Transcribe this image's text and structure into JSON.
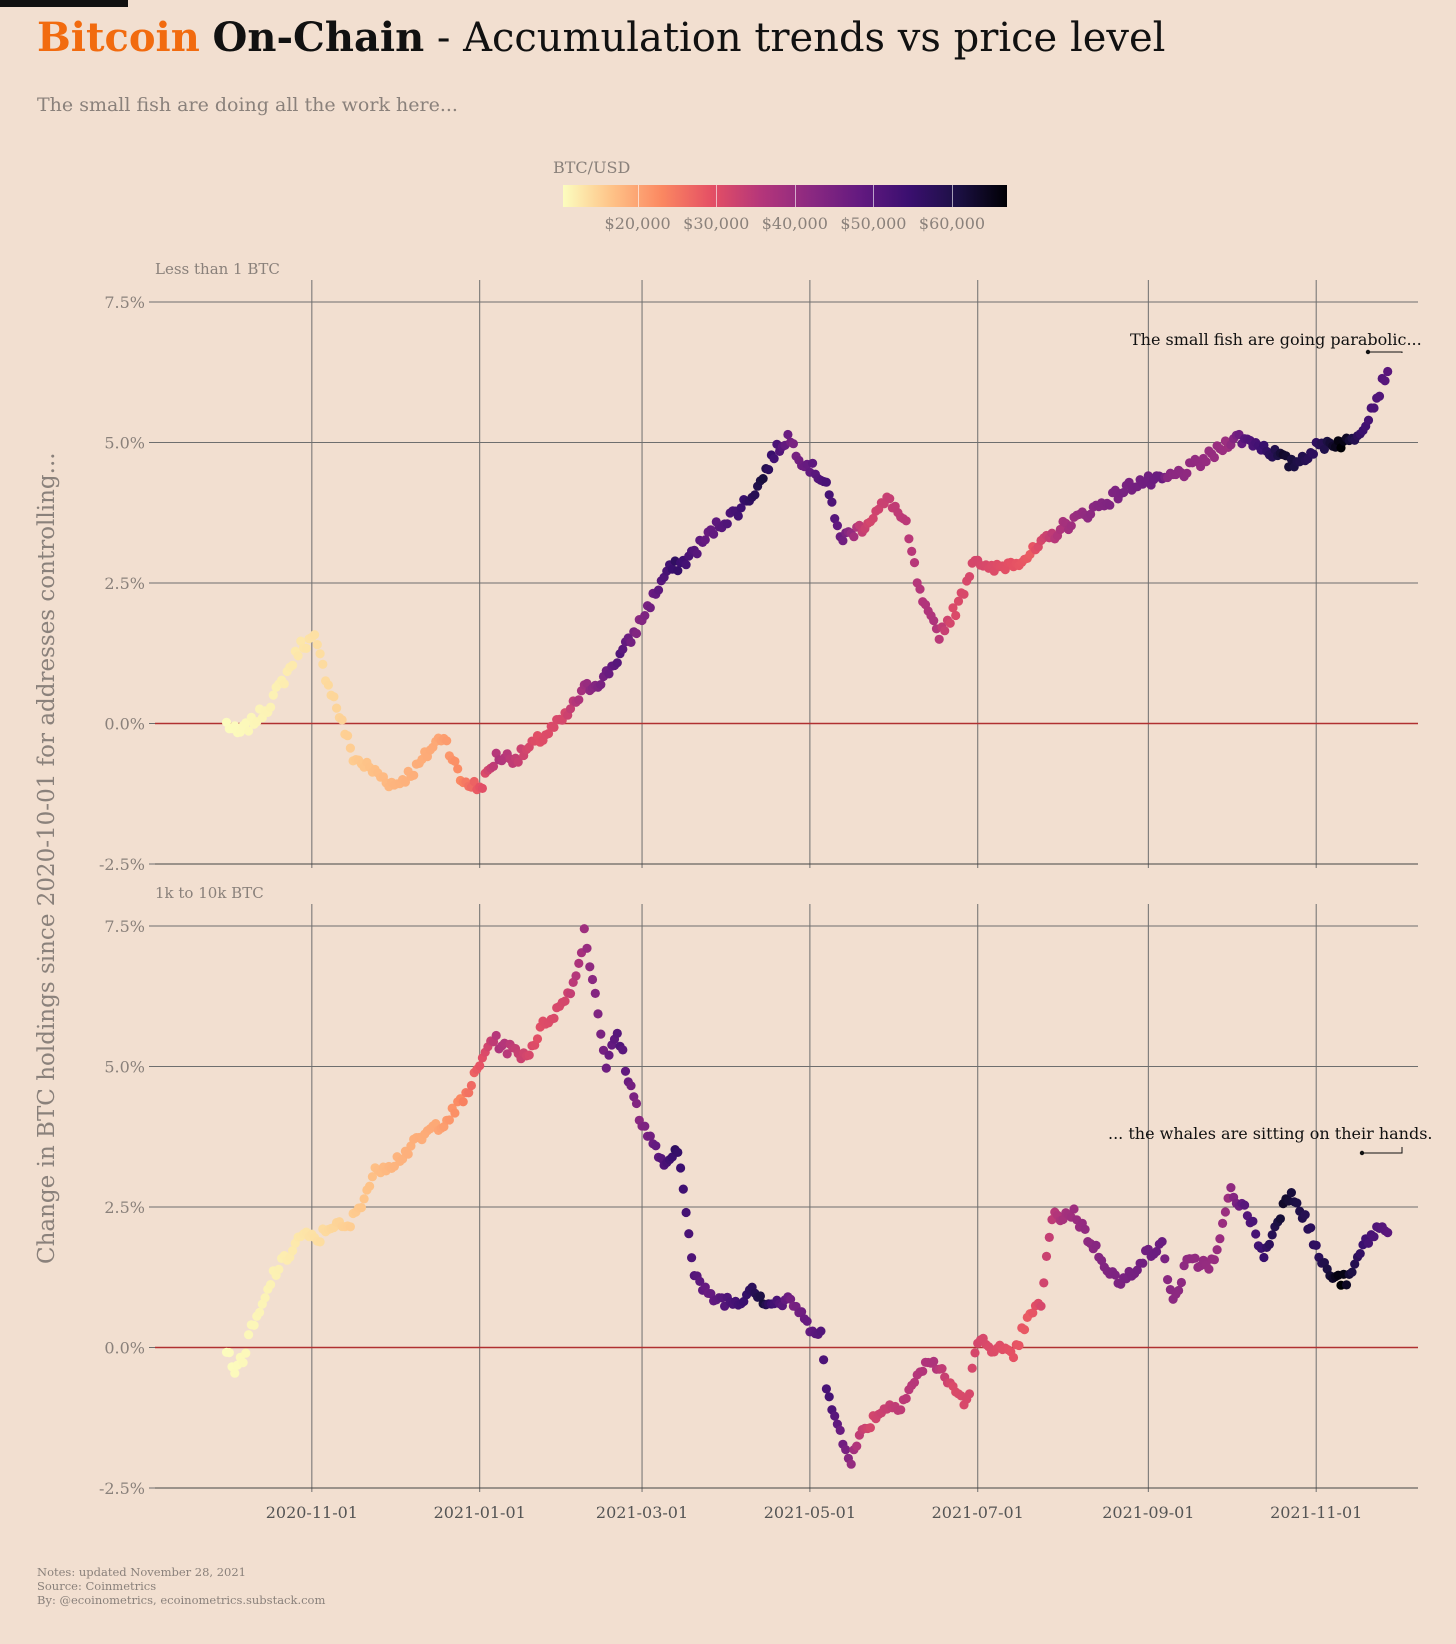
{
  "title": {
    "part1": "Bitcoin",
    "part2": "On-Chain",
    "part3": " - Accumulation trends vs price level"
  },
  "subtitle": "The small fish are doing all the work here...",
  "colors": {
    "background": "#f2dfd0",
    "title_accent": "#f26b0f",
    "zero_line": "#b03030",
    "grid": "#6e6e6e",
    "colormap": "magma (reversed): low price light yellow, high price near black"
  },
  "legend": {
    "title": "BTC/USD",
    "labels": [
      "$20,000",
      "$30,000",
      "$40,000",
      "$50,000",
      "$60,000"
    ],
    "values": [
      20000,
      30000,
      40000,
      50000,
      60000
    ],
    "range": [
      10500,
      67000
    ]
  },
  "ylabel": "Change in BTC holdings since 2020-10-01 for addresses controlling...",
  "notes": [
    "Notes: updated November 28, 2021",
    "Source: Coinmetrics",
    "By: @ecoinometrics, ecoinometrics.substack.com"
  ],
  "chart_data": [
    {
      "type": "scatter",
      "panel_title": "Less than 1 BTC",
      "x_ticks": [
        "2020-11-01",
        "2021-01-01",
        "2021-03-01",
        "2021-05-01",
        "2021-07-01",
        "2021-09-01",
        "2021-11-01"
      ],
      "y_ticks": [
        "-2.5%",
        "0.0%",
        "2.5%",
        "5.0%",
        "7.5%"
      ],
      "ylim": [
        -2.5,
        7.5
      ],
      "x_range": [
        "2020-09-05",
        "2021-12-08"
      ],
      "grid": true,
      "color_by": "BTC/USD price",
      "annotation": "The small fish are going parabolic...",
      "series_keyframes": [
        [
          "2020-10-01",
          0.0
        ],
        [
          "2020-10-05",
          -0.2
        ],
        [
          "2020-10-10",
          0.0
        ],
        [
          "2020-10-16",
          0.3
        ],
        [
          "2020-10-22",
          0.8
        ],
        [
          "2020-10-28",
          1.4
        ],
        [
          "2020-11-02",
          1.5
        ],
        [
          "2020-11-05",
          1.0
        ],
        [
          "2020-11-10",
          0.3
        ],
        [
          "2020-11-16",
          -0.6
        ],
        [
          "2020-11-25",
          -0.9
        ],
        [
          "2020-12-01",
          -1.1
        ],
        [
          "2020-12-09",
          -0.8
        ],
        [
          "2020-12-15",
          -0.4
        ],
        [
          "2020-12-19",
          -0.2
        ],
        [
          "2020-12-25",
          -1.0
        ],
        [
          "2021-01-01",
          -1.15
        ],
        [
          "2021-01-07",
          -0.6
        ],
        [
          "2021-01-15",
          -0.6
        ],
        [
          "2021-01-25",
          -0.2
        ],
        [
          "2021-02-01",
          0.1
        ],
        [
          "2021-02-08",
          0.6
        ],
        [
          "2021-02-15",
          0.8
        ],
        [
          "2021-02-25",
          1.5
        ],
        [
          "2021-03-10",
          2.7
        ],
        [
          "2021-03-17",
          2.9
        ],
        [
          "2021-03-28",
          3.5
        ],
        [
          "2021-04-05",
          3.8
        ],
        [
          "2021-04-12",
          4.2
        ],
        [
          "2021-04-18",
          4.8
        ],
        [
          "2021-04-23",
          5.1
        ],
        [
          "2021-04-28",
          4.7
        ],
        [
          "2021-05-07",
          4.3
        ],
        [
          "2021-05-10",
          3.6
        ],
        [
          "2021-05-13",
          3.3
        ],
        [
          "2021-05-20",
          3.5
        ],
        [
          "2021-05-26",
          3.8
        ],
        [
          "2021-05-30",
          4.0
        ],
        [
          "2021-06-05",
          3.5
        ],
        [
          "2021-06-10",
          2.3
        ],
        [
          "2021-06-13",
          1.9
        ],
        [
          "2021-06-17",
          1.6
        ],
        [
          "2021-06-24",
          2.1
        ],
        [
          "2021-06-30",
          3.0
        ],
        [
          "2021-07-05",
          2.7
        ],
        [
          "2021-07-20",
          3.0
        ],
        [
          "2021-08-01",
          3.5
        ],
        [
          "2021-08-15",
          3.9
        ],
        [
          "2021-08-28",
          4.3
        ],
        [
          "2021-09-05",
          4.3
        ],
        [
          "2021-09-15",
          4.5
        ],
        [
          "2021-09-25",
          4.8
        ],
        [
          "2021-10-02",
          5.1
        ],
        [
          "2021-10-10",
          5.0
        ],
        [
          "2021-10-17",
          4.8
        ],
        [
          "2021-10-23",
          4.6
        ],
        [
          "2021-11-01",
          4.9
        ],
        [
          "2021-11-05",
          5.0
        ],
        [
          "2021-11-13",
          5.0
        ],
        [
          "2021-11-18",
          5.3
        ],
        [
          "2021-11-23",
          5.8
        ],
        [
          "2021-11-27",
          6.3
        ]
      ]
    },
    {
      "type": "scatter",
      "panel_title": "1k to 10k BTC",
      "x_ticks": [
        "2020-11-01",
        "2021-01-01",
        "2021-03-01",
        "2021-05-01",
        "2021-07-01",
        "2021-09-01",
        "2021-11-01"
      ],
      "y_ticks": [
        "-2.5%",
        "0.0%",
        "2.5%",
        "5.0%",
        "7.5%"
      ],
      "ylim": [
        -2.5,
        7.5
      ],
      "x_range": [
        "2020-09-05",
        "2021-12-08"
      ],
      "grid": true,
      "color_by": "BTC/USD price",
      "annotation": "... the whales are sitting on their hands.",
      "series_keyframes": [
        [
          "2020-10-01",
          0.0
        ],
        [
          "2020-10-03",
          -0.4
        ],
        [
          "2020-10-07",
          -0.2
        ],
        [
          "2020-10-10",
          0.3
        ],
        [
          "2020-10-14",
          0.7
        ],
        [
          "2020-10-18",
          1.3
        ],
        [
          "2020-10-23",
          1.6
        ],
        [
          "2020-10-28",
          2.0
        ],
        [
          "2020-11-03",
          1.9
        ],
        [
          "2020-11-08",
          2.2
        ],
        [
          "2020-11-14",
          2.1
        ],
        [
          "2020-11-20",
          2.7
        ],
        [
          "2020-11-25",
          3.2
        ],
        [
          "2020-12-01",
          3.3
        ],
        [
          "2020-12-08",
          3.6
        ],
        [
          "2020-12-15",
          3.9
        ],
        [
          "2020-12-21",
          4.1
        ],
        [
          "2020-12-26",
          4.4
        ],
        [
          "2021-01-01",
          5.0
        ],
        [
          "2021-01-05",
          5.5
        ],
        [
          "2021-01-12",
          5.3
        ],
        [
          "2021-01-18",
          5.2
        ],
        [
          "2021-01-25",
          5.8
        ],
        [
          "2021-01-31",
          6.1
        ],
        [
          "2021-02-05",
          6.6
        ],
        [
          "2021-02-08",
          7.4
        ],
        [
          "2021-02-12",
          6.3
        ],
        [
          "2021-02-16",
          5.0
        ],
        [
          "2021-02-20",
          5.6
        ],
        [
          "2021-02-25",
          4.6
        ],
        [
          "2021-03-01",
          4.0
        ],
        [
          "2021-03-05",
          3.6
        ],
        [
          "2021-03-10",
          3.2
        ],
        [
          "2021-03-14",
          3.5
        ],
        [
          "2021-03-17",
          2.5
        ],
        [
          "2021-03-20",
          1.3
        ],
        [
          "2021-03-25",
          0.9
        ],
        [
          "2021-04-05",
          0.8
        ],
        [
          "2021-04-10",
          1.1
        ],
        [
          "2021-04-15",
          0.8
        ],
        [
          "2021-04-25",
          0.8
        ],
        [
          "2021-04-30",
          0.4
        ],
        [
          "2021-05-05",
          0.3
        ],
        [
          "2021-05-07",
          -0.8
        ],
        [
          "2021-05-12",
          -1.5
        ],
        [
          "2021-05-16",
          -2.0
        ],
        [
          "2021-05-20",
          -1.5
        ],
        [
          "2021-05-27",
          -1.1
        ],
        [
          "2021-06-03",
          -1.0
        ],
        [
          "2021-06-08",
          -0.6
        ],
        [
          "2021-06-14",
          -0.2
        ],
        [
          "2021-06-20",
          -0.6
        ],
        [
          "2021-06-27",
          -1.0
        ],
        [
          "2021-07-01",
          0.1
        ],
        [
          "2021-07-08",
          0.0
        ],
        [
          "2021-07-14",
          -0.2
        ],
        [
          "2021-07-18",
          0.4
        ],
        [
          "2021-07-24",
          0.8
        ],
        [
          "2021-07-28",
          2.3
        ],
        [
          "2021-08-05",
          2.4
        ],
        [
          "2021-08-12",
          1.8
        ],
        [
          "2021-08-22",
          1.1
        ],
        [
          "2021-08-30",
          1.6
        ],
        [
          "2021-09-06",
          1.8
        ],
        [
          "2021-09-10",
          0.8
        ],
        [
          "2021-09-15",
          1.5
        ],
        [
          "2021-09-25",
          1.5
        ],
        [
          "2021-10-01",
          2.8
        ],
        [
          "2021-10-08",
          2.3
        ],
        [
          "2021-10-13",
          1.6
        ],
        [
          "2021-10-18",
          2.3
        ],
        [
          "2021-10-23",
          2.8
        ],
        [
          "2021-10-28",
          2.3
        ],
        [
          "2021-11-03",
          1.5
        ],
        [
          "2021-11-08",
          1.2
        ],
        [
          "2021-11-13",
          1.2
        ],
        [
          "2021-11-18",
          1.8
        ],
        [
          "2021-11-23",
          2.1
        ],
        [
          "2021-11-27",
          2.1
        ]
      ]
    }
  ],
  "price_keyframes": [
    [
      "2020-10-01",
      10600
    ],
    [
      "2020-10-20",
      12000
    ],
    [
      "2020-11-01",
      13700
    ],
    [
      "2020-11-15",
      16000
    ],
    [
      "2020-12-01",
      19000
    ],
    [
      "2020-12-16",
      20500
    ],
    [
      "2020-12-25",
      24500
    ],
    [
      "2021-01-03",
      33000
    ],
    [
      "2021-01-08",
      40000
    ],
    [
      "2021-01-22",
      32000
    ],
    [
      "2021-02-01",
      34000
    ],
    [
      "2021-02-10",
      45000
    ],
    [
      "2021-02-21",
      56000
    ],
    [
      "2021-02-28",
      46000
    ],
    [
      "2021-03-13",
      61000
    ],
    [
      "2021-03-25",
      52000
    ],
    [
      "2021-04-14",
      64000
    ],
    [
      "2021-04-25",
      49000
    ],
    [
      "2021-05-08",
      58000
    ],
    [
      "2021-05-14",
      49000
    ],
    [
      "2021-05-19",
      37000
    ],
    [
      "2021-05-23",
      34000
    ],
    [
      "2021-06-01",
      37000
    ],
    [
      "2021-06-15",
      40000
    ],
    [
      "2021-06-22",
      33000
    ],
    [
      "2021-07-01",
      34000
    ],
    [
      "2021-07-20",
      30000
    ],
    [
      "2021-08-01",
      41000
    ],
    [
      "2021-08-14",
      47000
    ],
    [
      "2021-09-06",
      52000
    ],
    [
      "2021-09-08",
      46000
    ],
    [
      "2021-09-30",
      43000
    ],
    [
      "2021-10-06",
      55000
    ],
    [
      "2021-10-20",
      65000
    ],
    [
      "2021-11-01",
      61000
    ],
    [
      "2021-11-10",
      67000
    ],
    [
      "2021-11-20",
      58000
    ],
    [
      "2021-11-27",
      54500
    ]
  ]
}
